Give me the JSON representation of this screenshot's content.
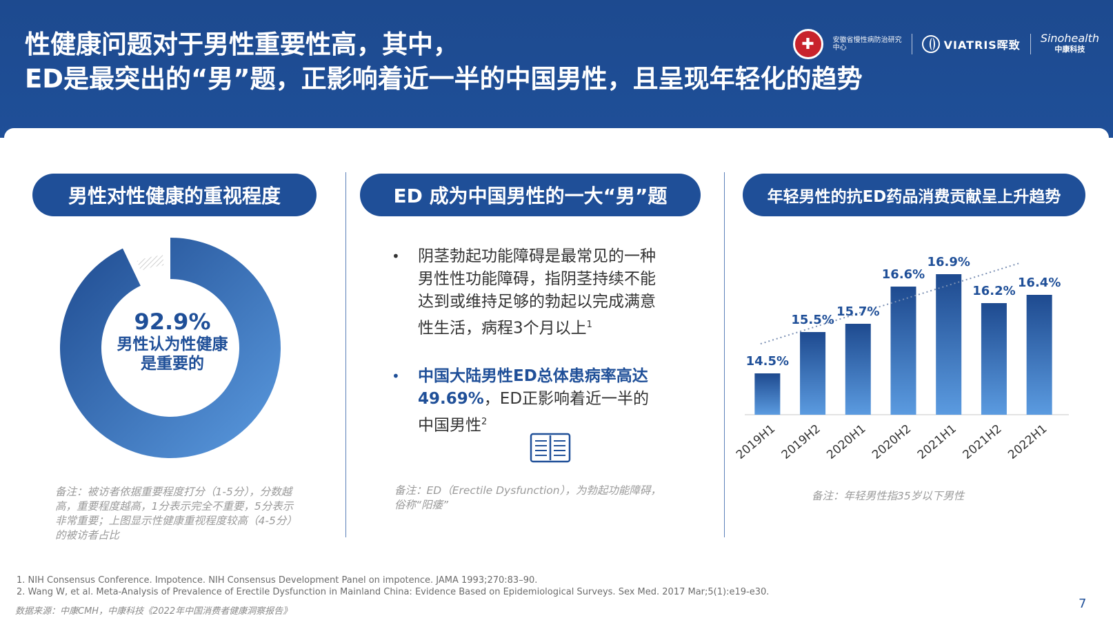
{
  "header": {
    "title_line1": "性健康问题对于男性重要性高，其中，",
    "title_line2": "ED是最突出的“男”题，正影响着近一半的中国男性，且呈现年轻化的趋势",
    "logo_seal_text": "安徽省慢性病防治研究中心",
    "logo_viatris": "VIATRIS晖致",
    "logo_sino": "Sinohealth",
    "logo_sino_sub": "中康科技"
  },
  "left": {
    "pill": "男性对性健康的重视程度",
    "donut": {
      "percent": 92.9,
      "value_text": "92.9%",
      "label_line1": "男性认为性健康",
      "label_line2": "是重要的",
      "color_start": "#1e4a8f",
      "color_end": "#5b9be0"
    },
    "note": "备注：被访者依据重要程度打分（1-5分），分数越高，重要程度越高，1分表示完全不重要，5分表示非常重要；上图显示性健康重视程度较高（4-5分）的被访者占比"
  },
  "middle": {
    "pill": "ED 成为中国男性的一大“男”题",
    "bullet1": "阴茎勃起功能障碍是最常见的一种男性性功能障碍，指阴茎持续不能达到或维持足够的勃起以完成满意性生活，病程3个月以上",
    "bullet1_ref": "1",
    "bullet2_highlight": "中国大陆男性ED总体患病率高达49.69%",
    "bullet2_rest": "，ED正影响着近一半的中国男性",
    "bullet2_ref": "2",
    "note": "备注：ED（Erectile Dysfunction），为勃起功能障碍，俗称“阳痿”"
  },
  "right": {
    "pill": "年轻男性的抗ED药品消费贡献呈上升趋势",
    "note": "备注：年轻男性指35岁以下男性"
  },
  "chart_data": {
    "type": "bar",
    "categories": [
      "2019H1",
      "2019H2",
      "2020H1",
      "2020H2",
      "2021H1",
      "2021H2",
      "2022H1"
    ],
    "values": [
      14.5,
      15.5,
      15.7,
      16.6,
      16.9,
      16.2,
      16.4
    ],
    "labels": [
      "14.5%",
      "15.5%",
      "15.7%",
      "16.6%",
      "16.9%",
      "16.2%",
      "16.4%"
    ],
    "trendline": "dotted linear",
    "ylim": [
      13.5,
      17.2
    ],
    "bar_color_top": "#1e4a8f",
    "bar_color_bottom": "#5b9be0",
    "grid": false
  },
  "footnotes": {
    "ref1": "1. NIH Consensus Conference. Impotence. NIH Consensus Development Panel on impotence. JAMA 1993;270:83–90.",
    "ref2": "2. Wang W, et al. Meta-Analysis of Prevalence of Erectile Dysfunction in Mainland China: Evidence Based on Epidemiological Surveys. Sex Med. 2017 Mar;5(1):e19-e30.",
    "source": "数据来源：中康CMH，中康科技《2022年中国消费者健康洞察报告》"
  },
  "page_number": "7"
}
